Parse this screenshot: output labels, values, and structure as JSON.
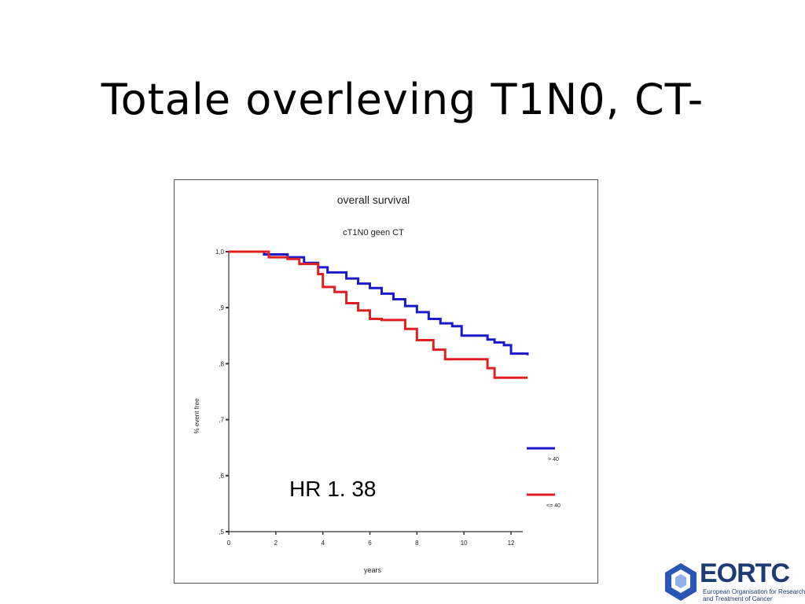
{
  "slide": {
    "title": "Totale overleving T1N0, CT-",
    "hr_annotation": "HR 1. 38"
  },
  "logo": {
    "name": "EORTC",
    "subtitle_line1": "European Organisation for Research",
    "subtitle_line2": "and Treatment of Cancer"
  },
  "chart_data": {
    "type": "line",
    "step": true,
    "title": "overall survival",
    "subtitle": "cT1N0  geen CT",
    "xlabel": "years",
    "ylabel": "% event free",
    "xlim": [
      0,
      12.5
    ],
    "ylim": [
      0.5,
      1.0
    ],
    "x_ticks": [
      0,
      2,
      4,
      6,
      8,
      10,
      12
    ],
    "x_tick_labels": [
      "0",
      "2",
      "4",
      "6",
      "8",
      "10",
      "12"
    ],
    "y_ticks": [
      0.5,
      0.6,
      0.7,
      0.8,
      0.9,
      1.0
    ],
    "y_tick_labels": [
      ",5",
      ",6",
      ",7",
      ",8",
      ",9",
      "1,0"
    ],
    "grid": false,
    "legend_position": "right",
    "series": [
      {
        "name": "> 40",
        "color": "#1a1acc",
        "points": [
          [
            0,
            1.0
          ],
          [
            1.5,
            0.995
          ],
          [
            2.5,
            0.99
          ],
          [
            3.2,
            0.98
          ],
          [
            3.8,
            0.972
          ],
          [
            4.2,
            0.963
          ],
          [
            5.0,
            0.952
          ],
          [
            5.5,
            0.943
          ],
          [
            6.0,
            0.935
          ],
          [
            6.5,
            0.925
          ],
          [
            7.0,
            0.915
          ],
          [
            7.5,
            0.903
          ],
          [
            8.0,
            0.892
          ],
          [
            8.5,
            0.88
          ],
          [
            9.0,
            0.872
          ],
          [
            9.5,
            0.867
          ],
          [
            9.9,
            0.85
          ],
          [
            10.3,
            0.85
          ],
          [
            11.0,
            0.843
          ],
          [
            11.3,
            0.838
          ],
          [
            11.7,
            0.833
          ],
          [
            12.0,
            0.818
          ],
          [
            12.7,
            0.815
          ]
        ]
      },
      {
        "name": "<= 40",
        "color": "#e02020",
        "points": [
          [
            0,
            1.0
          ],
          [
            1.7,
            0.99
          ],
          [
            2.5,
            0.987
          ],
          [
            3.0,
            0.978
          ],
          [
            3.8,
            0.96
          ],
          [
            4.0,
            0.937
          ],
          [
            4.5,
            0.928
          ],
          [
            5.0,
            0.908
          ],
          [
            5.5,
            0.895
          ],
          [
            6.0,
            0.88
          ],
          [
            6.5,
            0.878
          ],
          [
            7.5,
            0.862
          ],
          [
            8.0,
            0.842
          ],
          [
            8.7,
            0.825
          ],
          [
            9.2,
            0.808
          ],
          [
            9.8,
            0.808
          ],
          [
            10.5,
            0.808
          ],
          [
            11.0,
            0.792
          ],
          [
            11.3,
            0.775
          ],
          [
            12.7,
            0.775
          ]
        ]
      }
    ]
  }
}
